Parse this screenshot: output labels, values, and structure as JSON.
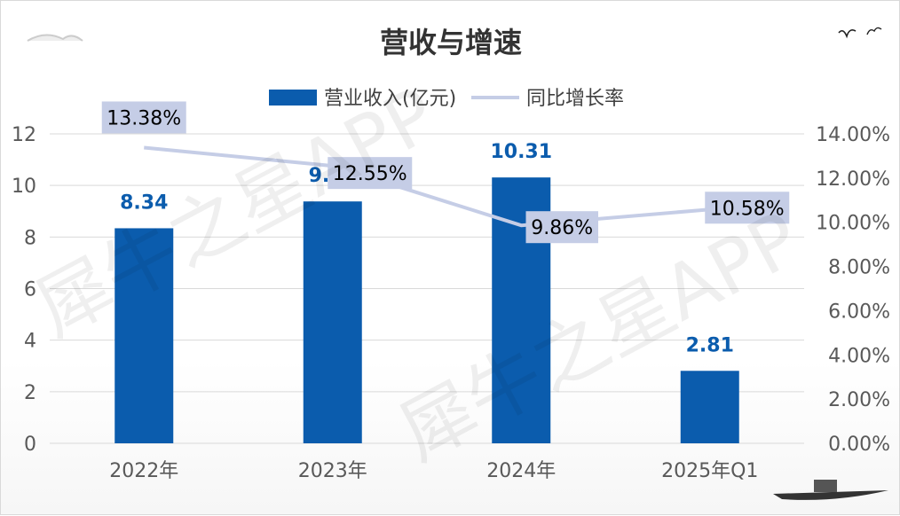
{
  "chart_data": {
    "type": "bar",
    "title": "营收与增速",
    "categories": [
      "2022年",
      "2023年",
      "2024年",
      "2025年Q1"
    ],
    "series": [
      {
        "name": "营业收入(亿元)",
        "type": "bar",
        "axis": "left",
        "values": [
          8.34,
          9.38,
          10.31,
          2.81
        ],
        "labels": [
          "8.34",
          "9.38",
          "10.31",
          "2.81"
        ],
        "color": "#0b5cad"
      },
      {
        "name": "同比增长率",
        "type": "line",
        "axis": "right",
        "values": [
          13.38,
          12.55,
          9.86,
          10.58
        ],
        "labels": [
          "13.38%",
          "12.55%",
          "9.86%",
          "10.58%"
        ],
        "color": "#c5cde6"
      }
    ],
    "y_left": {
      "ylim": [
        0,
        12
      ],
      "ticks": [
        "0",
        "2",
        "4",
        "6",
        "8",
        "10",
        "12"
      ]
    },
    "y_right": {
      "ylim": [
        0,
        14
      ],
      "ticks": [
        "0.00%",
        "2.00%",
        "4.00%",
        "6.00%",
        "8.00%",
        "10.00%",
        "12.00%",
        "14.00%"
      ]
    },
    "legend_position": "top",
    "grid": true
  },
  "watermark": {
    "text": "犀牛之星APP"
  },
  "colors": {
    "bar": "#0b5cad",
    "line": "#c5cde6",
    "label_box": "#c5cde6",
    "grid": "#d9d9d9"
  }
}
